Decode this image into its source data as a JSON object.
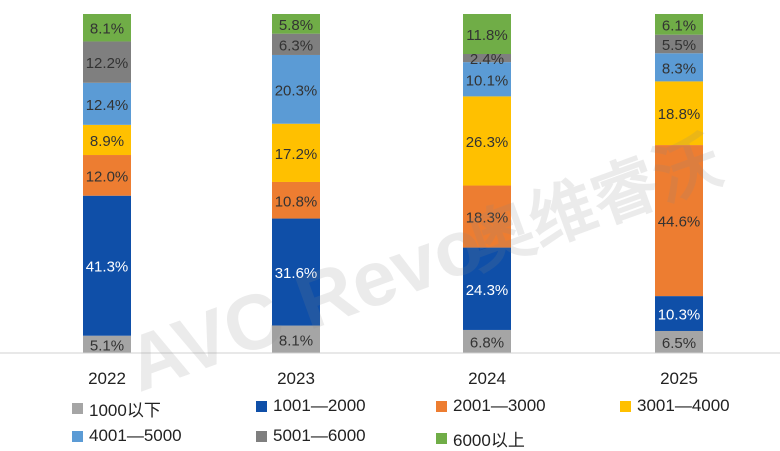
{
  "chart_data": {
    "type": "bar",
    "stacked": true,
    "normalized": true,
    "categories": [
      "2022",
      "2023",
      "2024",
      "2025"
    ],
    "series": [
      {
        "name": "1000以下",
        "color": "#a5a5a5",
        "values": [
          5.1,
          8.1,
          6.8,
          6.5
        ],
        "labels": [
          "5.1%",
          "8.1%",
          "6.8%",
          "6.5%"
        ]
      },
      {
        "name": "1001—2000",
        "color": "#0f4fa8",
        "values": [
          41.3,
          31.6,
          24.3,
          10.3
        ],
        "labels": [
          "41.3%",
          "31.6%",
          "24.3%",
          "10.3%"
        ]
      },
      {
        "name": "2001—3000",
        "color": "#ed7d31",
        "values": [
          12.0,
          10.8,
          18.3,
          44.6
        ],
        "labels": [
          "12.0%",
          "10.8%",
          "18.3%",
          "44.6%"
        ]
      },
      {
        "name": "3001—4000",
        "color": "#ffc000",
        "values": [
          8.9,
          17.2,
          26.3,
          18.8
        ],
        "labels": [
          "8.9%",
          "17.2%",
          "26.3%",
          "18.8%"
        ]
      },
      {
        "name": "4001—5000",
        "color": "#5b9bd5",
        "values": [
          12.4,
          20.3,
          10.1,
          8.3
        ],
        "labels": [
          "12.4%",
          "20.3%",
          "10.1%",
          "8.3%"
        ]
      },
      {
        "name": "5001—6000",
        "color": "#7f7f7f",
        "values": [
          12.2,
          6.3,
          2.4,
          5.5
        ],
        "labels": [
          "12.2%",
          "6.3%",
          "2.4%",
          "5.5%"
        ]
      },
      {
        "name": "6000以上",
        "color": "#70ad47",
        "values": [
          8.1,
          5.8,
          11.8,
          6.1
        ],
        "labels": [
          "8.1%",
          "5.8%",
          "11.8%",
          "6.1%"
        ]
      }
    ],
    "legend_position": "bottom",
    "grid": false
  },
  "watermark": {
    "latin": "AVC Revo",
    "cjk": "奥维睿沃"
  }
}
